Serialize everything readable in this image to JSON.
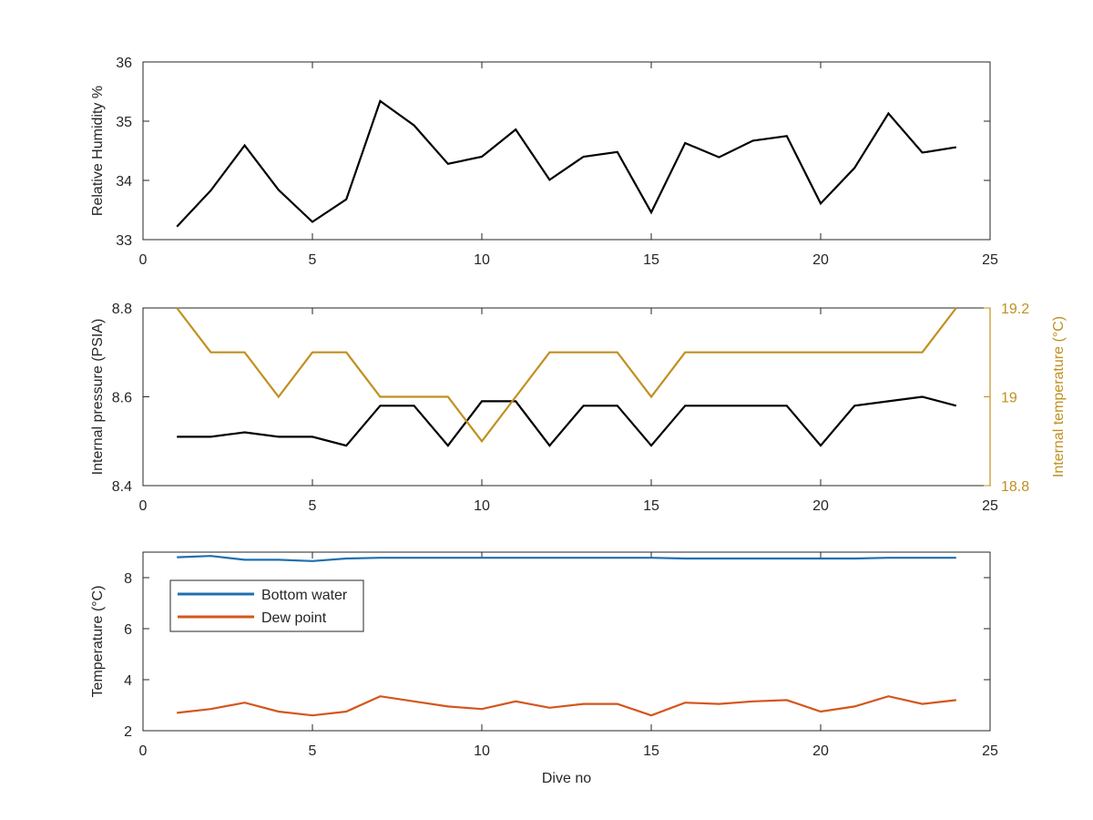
{
  "chart_data": [
    {
      "type": "line",
      "x": [
        1,
        2,
        3,
        4,
        5,
        6,
        7,
        8,
        9,
        10,
        11,
        12,
        13,
        14,
        15,
        16,
        17,
        18,
        19,
        20,
        21,
        22,
        23,
        24
      ],
      "series": [
        {
          "values": [
            33.22,
            33.83,
            34.59,
            33.84,
            33.3,
            33.68,
            35.34,
            34.93,
            34.28,
            34.4,
            34.86,
            34.01,
            34.4,
            34.48,
            33.46,
            34.63,
            34.39,
            34.67,
            34.75,
            33.61,
            34.21,
            35.13,
            34.47,
            34.56
          ],
          "color": "#000000"
        }
      ],
      "xlim": [
        0,
        25
      ],
      "ylim": [
        33,
        36
      ],
      "xticks": [
        "0",
        "5",
        "10",
        "15",
        "20",
        "25"
      ],
      "yticks": [
        "33",
        "34",
        "35",
        "36"
      ],
      "xlabel": "",
      "ylabel": "Relative Humidity %",
      "grid": false
    },
    {
      "type": "line",
      "x": [
        1,
        2,
        3,
        4,
        5,
        6,
        7,
        8,
        9,
        10,
        11,
        12,
        13,
        14,
        15,
        16,
        17,
        18,
        19,
        20,
        21,
        22,
        23,
        24
      ],
      "series": [
        {
          "axis": "left",
          "values": [
            8.51,
            8.51,
            8.52,
            8.51,
            8.51,
            8.49,
            8.58,
            8.58,
            8.49,
            8.59,
            8.59,
            8.49,
            8.58,
            8.58,
            8.49,
            8.58,
            8.58,
            8.58,
            8.58,
            8.49,
            8.58,
            8.59,
            8.6,
            8.58
          ],
          "color": "#000000"
        },
        {
          "axis": "right",
          "values": [
            19.2,
            19.1,
            19.1,
            19.0,
            19.1,
            19.1,
            19.0,
            19.0,
            19.0,
            18.9,
            19.0,
            19.1,
            19.1,
            19.1,
            19.0,
            19.1,
            19.1,
            19.1,
            19.1,
            19.1,
            19.1,
            19.1,
            19.1,
            19.2
          ],
          "color": "#c09020"
        }
      ],
      "xlim": [
        0,
        25
      ],
      "ylim": [
        8.4,
        8.8
      ],
      "ylim_right": [
        18.8,
        19.2
      ],
      "xticks": [
        "0",
        "5",
        "10",
        "15",
        "20",
        "25"
      ],
      "yticks": [
        "8.4",
        "8.6",
        "8.8"
      ],
      "yticks_right": [
        "18.8",
        "19",
        "19.2"
      ],
      "xlabel": "",
      "ylabel": "Internal pressure (PSIA)",
      "ylabel_right": "Internal temperature (°C)",
      "grid": false
    },
    {
      "type": "line",
      "x": [
        1,
        2,
        3,
        4,
        5,
        6,
        7,
        8,
        9,
        10,
        11,
        12,
        13,
        14,
        15,
        16,
        17,
        18,
        19,
        20,
        21,
        22,
        23,
        24
      ],
      "series": [
        {
          "name": "Bottom water",
          "values": [
            8.8,
            8.85,
            8.7,
            8.7,
            8.65,
            8.75,
            8.78,
            8.78,
            8.78,
            8.78,
            8.78,
            8.78,
            8.78,
            8.78,
            8.78,
            8.75,
            8.75,
            8.75,
            8.75,
            8.75,
            8.75,
            8.78,
            8.78,
            8.78
          ],
          "color": "#1f6fb0"
        },
        {
          "name": "Dew point",
          "values": [
            2.7,
            2.85,
            3.1,
            2.75,
            2.6,
            2.75,
            3.35,
            3.15,
            2.95,
            2.85,
            3.15,
            2.9,
            3.05,
            3.05,
            2.6,
            3.1,
            3.05,
            3.15,
            3.2,
            2.75,
            2.95,
            3.35,
            3.05,
            3.2
          ],
          "color": "#d4561c"
        }
      ],
      "xlim": [
        0,
        25
      ],
      "ylim": [
        2,
        9
      ],
      "xticks": [
        "0",
        "5",
        "10",
        "15",
        "20",
        "25"
      ],
      "yticks": [
        "2",
        "4",
        "6",
        "8"
      ],
      "xlabel": "Dive no",
      "ylabel": "Temperature (°C)",
      "legend": "top-left",
      "grid": false
    }
  ]
}
